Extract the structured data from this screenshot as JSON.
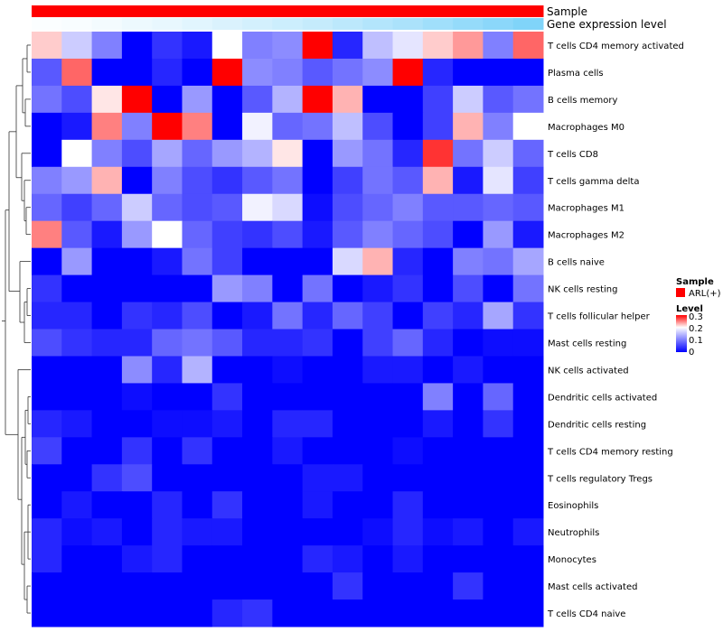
{
  "chart_data": {
    "type": "heatmap",
    "annotation_tracks": [
      {
        "name": "Sample",
        "color": "#ff0000",
        "values": [
          "ARL(+)",
          "ARL(+)",
          "ARL(+)",
          "ARL(+)",
          "ARL(+)",
          "ARL(+)",
          "ARL(+)",
          "ARL(+)",
          "ARL(+)",
          "ARL(+)",
          "ARL(+)",
          "ARL(+)",
          "ARL(+)",
          "ARL(+)",
          "ARL(+)",
          "ARL(+)",
          "ARL(+)"
        ]
      },
      {
        "name": "Gene expression level",
        "values": [
          0.02,
          0.04,
          0.07,
          0.1,
          0.13,
          0.17,
          0.21,
          0.25,
          0.29,
          0.33,
          0.38,
          0.43,
          0.48,
          0.54,
          0.6,
          0.66,
          0.72
        ]
      }
    ],
    "rows": [
      "T cells CD4 memory activated",
      "Plasma cells",
      "B cells memory",
      "Macrophages M0",
      "T cells CD8",
      "T cells gamma delta",
      "Macrophages M1",
      "Macrophages M2",
      "B cells naive",
      "NK cells resting",
      "T cells follicular helper",
      "Mast cells resting",
      "NK cells activated",
      "Dendritic cells activated",
      "Dendritic cells resting",
      "T cells CD4 memory resting",
      "T cells regulatory  Tregs",
      "Eosinophils",
      "Neutrophils",
      "Monocytes",
      "Mast cells activated",
      "T cells CD4 naive"
    ],
    "values": [
      [
        0.22,
        0.16,
        0.1,
        0.0,
        0.04,
        0.02,
        0.2,
        0.1,
        0.11,
        0.3,
        0.03,
        0.15,
        0.18,
        0.22,
        0.24,
        0.1,
        0.26
      ],
      [
        0.07,
        0.26,
        0.0,
        0.0,
        0.03,
        0.0,
        0.3,
        0.11,
        0.1,
        0.07,
        0.09,
        0.11,
        0.3,
        0.03,
        0.0,
        0.0,
        0.0
      ],
      [
        0.09,
        0.06,
        0.21,
        0.3,
        0.0,
        0.12,
        0.0,
        0.07,
        0.14,
        0.3,
        0.23,
        0.0,
        0.0,
        0.05,
        0.16,
        0.07,
        0.09
      ],
      [
        0.0,
        0.02,
        0.25,
        0.1,
        0.3,
        0.25,
        0.0,
        0.19,
        0.08,
        0.09,
        0.15,
        0.06,
        0.0,
        0.05,
        0.23,
        0.1,
        0.2
      ],
      [
        0.0,
        0.2,
        0.1,
        0.06,
        0.13,
        0.08,
        0.12,
        0.14,
        0.21,
        0.0,
        0.12,
        0.09,
        0.03,
        0.28,
        0.09,
        0.16,
        0.08
      ],
      [
        0.1,
        0.12,
        0.23,
        0.0,
        0.1,
        0.06,
        0.04,
        0.07,
        0.09,
        0.0,
        0.05,
        0.09,
        0.07,
        0.23,
        0.02,
        0.18,
        0.05
      ],
      [
        0.08,
        0.05,
        0.08,
        0.16,
        0.08,
        0.06,
        0.07,
        0.19,
        0.17,
        0.01,
        0.06,
        0.08,
        0.1,
        0.07,
        0.07,
        0.08,
        0.07
      ],
      [
        0.25,
        0.07,
        0.02,
        0.12,
        0.2,
        0.08,
        0.05,
        0.04,
        0.06,
        0.02,
        0.07,
        0.1,
        0.08,
        0.06,
        0.0,
        0.12,
        0.02
      ],
      [
        0.0,
        0.12,
        0.0,
        0.0,
        0.02,
        0.09,
        0.05,
        0.0,
        0.0,
        0.0,
        0.17,
        0.23,
        0.03,
        0.0,
        0.1,
        0.09,
        0.13
      ],
      [
        0.04,
        0.0,
        0.0,
        0.0,
        0.0,
        0.0,
        0.12,
        0.1,
        0.0,
        0.09,
        0.0,
        0.02,
        0.04,
        0.0,
        0.06,
        0.0,
        0.09
      ],
      [
        0.03,
        0.03,
        0.0,
        0.04,
        0.03,
        0.06,
        0.0,
        0.02,
        0.09,
        0.03,
        0.08,
        0.05,
        0.0,
        0.05,
        0.03,
        0.13,
        0.04
      ],
      [
        0.06,
        0.04,
        0.03,
        0.03,
        0.08,
        0.09,
        0.07,
        0.03,
        0.03,
        0.04,
        0.0,
        0.05,
        0.08,
        0.03,
        0.0,
        0.01,
        0.01
      ],
      [
        0.0,
        0.0,
        0.0,
        0.11,
        0.03,
        0.14,
        0.0,
        0.0,
        0.01,
        0.0,
        0.0,
        0.02,
        0.02,
        0.0,
        0.02,
        0.0,
        0.0
      ],
      [
        0.0,
        0.0,
        0.0,
        0.01,
        0.0,
        0.0,
        0.04,
        0.0,
        0.0,
        0.0,
        0.0,
        0.0,
        0.0,
        0.1,
        0.0,
        0.08,
        0.0
      ],
      [
        0.03,
        0.02,
        0.0,
        0.0,
        0.01,
        0.01,
        0.02,
        0.0,
        0.03,
        0.03,
        0.0,
        0.0,
        0.0,
        0.02,
        0.0,
        0.04,
        0.0
      ],
      [
        0.05,
        0.0,
        0.0,
        0.04,
        0.0,
        0.04,
        0.0,
        0.0,
        0.02,
        0.0,
        0.0,
        0.0,
        0.01,
        0.0,
        0.0,
        0.0,
        0.0
      ],
      [
        0.0,
        0.0,
        0.04,
        0.06,
        0.0,
        0.0,
        0.0,
        0.0,
        0.0,
        0.02,
        0.02,
        0.0,
        0.0,
        0.0,
        0.0,
        0.0,
        0.0
      ],
      [
        0.0,
        0.02,
        0.0,
        0.0,
        0.03,
        0.0,
        0.04,
        0.0,
        0.0,
        0.02,
        0.0,
        0.0,
        0.03,
        0.0,
        0.0,
        0.0,
        0.0
      ],
      [
        0.03,
        0.01,
        0.02,
        0.0,
        0.03,
        0.02,
        0.02,
        0.0,
        0.0,
        0.0,
        0.0,
        0.01,
        0.03,
        0.01,
        0.02,
        0.0,
        0.02
      ],
      [
        0.03,
        0.0,
        0.0,
        0.02,
        0.03,
        0.0,
        0.0,
        0.0,
        0.0,
        0.03,
        0.02,
        0.0,
        0.02,
        0.0,
        0.0,
        0.0,
        0.0
      ],
      [
        0.0,
        0.0,
        0.0,
        0.0,
        0.0,
        0.0,
        0.0,
        0.0,
        0.0,
        0.0,
        0.04,
        0.0,
        0.0,
        0.0,
        0.04,
        0.0,
        0.0
      ],
      [
        0.0,
        0.0,
        0.0,
        0.0,
        0.0,
        0.0,
        0.03,
        0.04,
        0.0,
        0.0,
        0.0,
        0.0,
        0.0,
        0.0,
        0.0,
        0.0,
        0.0
      ]
    ],
    "color_scale": {
      "low": "#0000ff",
      "mid": "#ffffff",
      "high": "#ff0000",
      "min": 0,
      "mid_value": 0.2,
      "max": 0.3
    },
    "legend": {
      "sample_title": "Sample",
      "sample_entry": "ARL(+)",
      "level_title": "Level",
      "level_ticks": [
        0.3,
        0.2,
        0.1,
        0
      ]
    },
    "gene_expression_colors": {
      "low": "#ffffff",
      "high": "#4fc3f7"
    },
    "row_dendrogram": true,
    "legend_position": "right"
  }
}
